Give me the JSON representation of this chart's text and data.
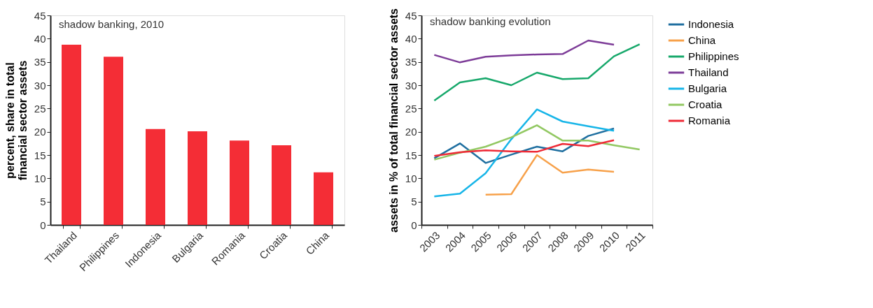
{
  "chart_data": [
    {
      "type": "bar",
      "title": "shadow banking, 2010",
      "ylabel": "percent, share in total financial sector assets",
      "categories": [
        "Thailand",
        "Philippines",
        "Indonesia",
        "Bulgaria",
        "Romania",
        "Croatia",
        "China"
      ],
      "values": [
        38.7,
        36.1,
        20.6,
        20.1,
        18.1,
        17.1,
        11.3
      ],
      "color": "#f42d36",
      "ylim": [
        0,
        45
      ],
      "yticks": [
        0,
        5,
        10,
        15,
        20,
        25,
        30,
        35,
        40,
        45
      ],
      "grid": false,
      "legend": false
    },
    {
      "type": "line",
      "title": "shadow banking evolution",
      "ylabel": "assets in % of total financial sector assets",
      "categories": [
        "2003",
        "2004",
        "2005",
        "2006",
        "2007",
        "2008",
        "2009",
        "2010",
        "2011"
      ],
      "series": [
        {
          "name": "Indonesia",
          "color": "#1f6fa0",
          "values": [
            14.3,
            17.5,
            13.3,
            15.1,
            16.8,
            15.8,
            19.1,
            20.7,
            null
          ]
        },
        {
          "name": "China",
          "color": "#f7a14a",
          "values": [
            null,
            null,
            6.5,
            6.6,
            15.0,
            11.2,
            11.9,
            11.4,
            null
          ]
        },
        {
          "name": "Philippines",
          "color": "#17a86b",
          "values": [
            26.7,
            30.6,
            31.5,
            30.0,
            32.7,
            31.3,
            31.5,
            36.2,
            38.8
          ]
        },
        {
          "name": "Thailand",
          "color": "#7d3c98",
          "values": [
            36.5,
            34.9,
            36.1,
            36.4,
            36.6,
            36.7,
            39.6,
            38.7,
            null
          ]
        },
        {
          "name": "Bulgaria",
          "color": "#17b5e8",
          "values": [
            6.1,
            6.7,
            11.1,
            18.4,
            24.8,
            22.2,
            21.2,
            20.2,
            null
          ]
        },
        {
          "name": "Croatia",
          "color": "#92c862",
          "values": [
            14.0,
            15.5,
            16.8,
            18.8,
            21.4,
            18.1,
            18.1,
            17.1,
            16.2
          ]
        },
        {
          "name": "Romania",
          "color": "#ee2a36",
          "values": [
            14.8,
            15.6,
            16.0,
            15.8,
            15.7,
            17.4,
            16.9,
            18.2,
            null
          ]
        }
      ],
      "ylim": [
        0,
        45
      ],
      "yticks": [
        0,
        5,
        10,
        15,
        20,
        25,
        30,
        35,
        40,
        45
      ],
      "grid": false,
      "legend": "right",
      "marker": "none",
      "line_style": "solid"
    }
  ]
}
